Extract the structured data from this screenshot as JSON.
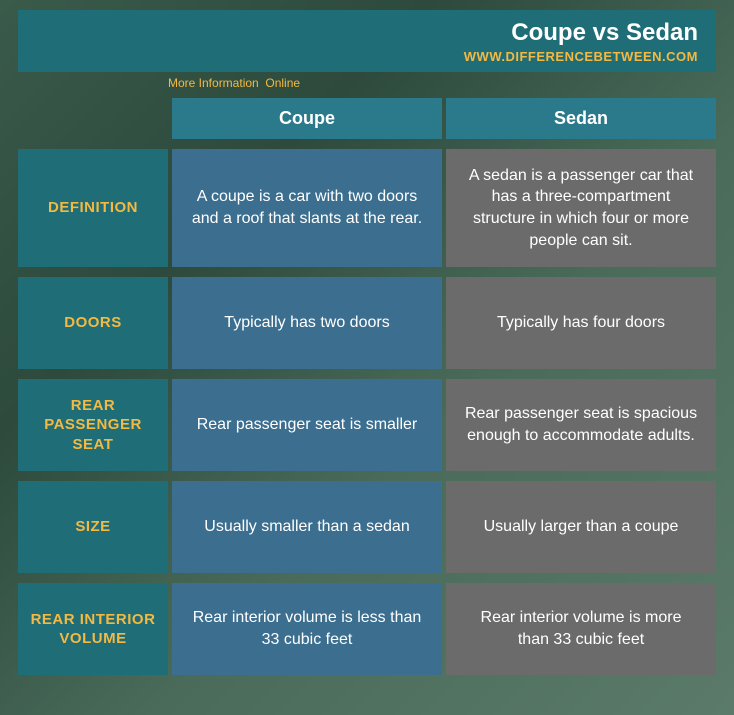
{
  "header": {
    "title": "Coupe vs Sedan",
    "site": "WWW.DIFFERENCEBETWEEN.COM",
    "more_info": "More Information  Online"
  },
  "columns": {
    "a": "Coupe",
    "b": "Sedan"
  },
  "rows": [
    {
      "label": "DEFINITION",
      "a": "A coupe is a car with two doors and a roof that slants at the rear.",
      "b": "A sedan is a passenger car that has a three-compartment structure in which four or more people can sit.",
      "height_class": "row-def"
    },
    {
      "label": "DOORS",
      "a": "Typically has two doors",
      "b": "Typically has four doors",
      "height_class": "row-norm"
    },
    {
      "label": "REAR PASSENGER SEAT",
      "a": "Rear passenger seat is smaller",
      "b": "Rear passenger seat is spacious enough to accommodate adults.",
      "height_class": "row-norm"
    },
    {
      "label": "SIZE",
      "a": "Usually smaller than a sedan",
      "b": "Usually larger than a coupe",
      "height_class": "row-norm"
    },
    {
      "label": "REAR INTERIOR VOLUME",
      "a": "Rear interior volume is less than 33 cubic feet",
      "b": "Rear interior volume is more than 33 cubic feet",
      "height_class": "row-norm"
    }
  ],
  "colors": {
    "header_bg": "#1f6d77",
    "accent": "#f4b942",
    "col_header_bg": "#2b7a8c",
    "cell_a_bg": "#3b6e8f",
    "cell_b_bg": "#6b6b6b",
    "text_white": "#ffffff"
  }
}
